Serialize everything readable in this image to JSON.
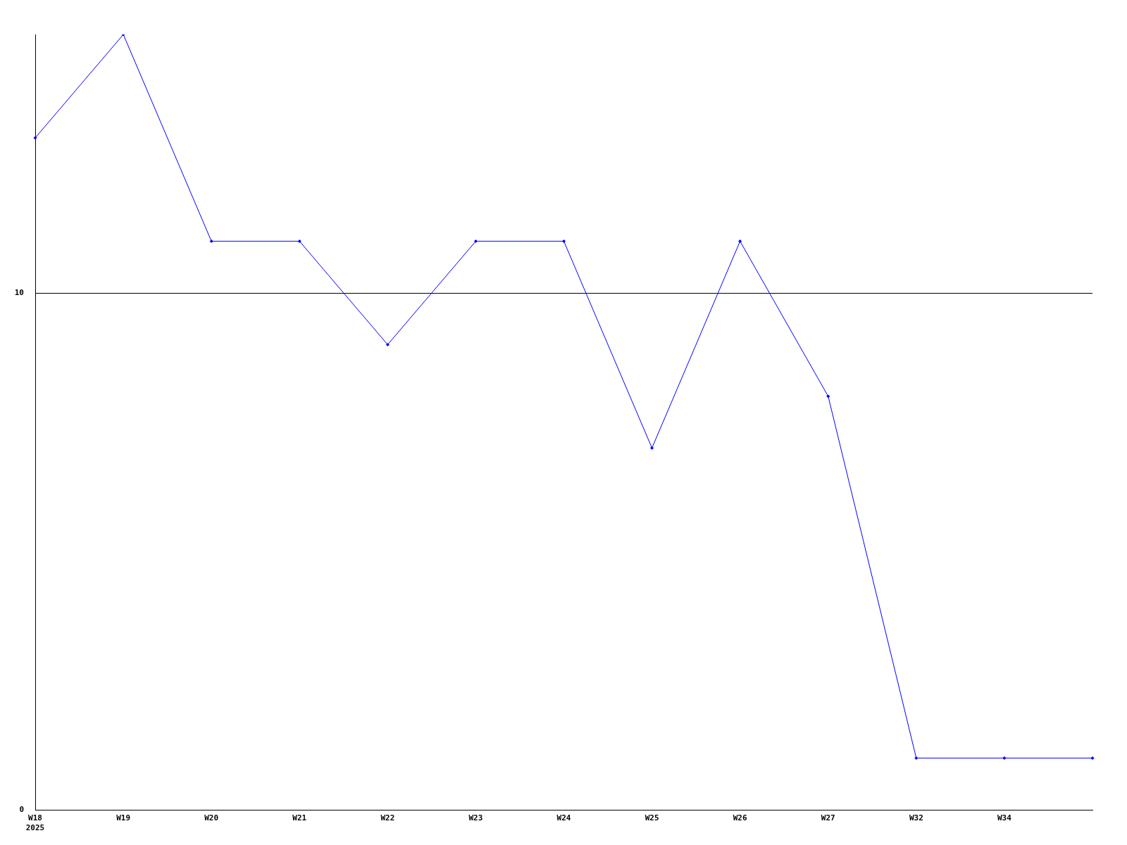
{
  "chart_data": {
    "type": "line",
    "categories": [
      "W18\n2025",
      "W19",
      "W20",
      "W21",
      "W22",
      "W23",
      "W24",
      "W25",
      "W26",
      "W27",
      "W32",
      "W34",
      null
    ],
    "series": [
      {
        "color": "#0000ff",
        "values": [
          13,
          15,
          11,
          11,
          9,
          11,
          11,
          7,
          11,
          8,
          1,
          1,
          1
        ]
      }
    ],
    "ylim": [
      0,
      15
    ],
    "yticks": [
      0,
      10
    ],
    "grid": "y",
    "legend": false,
    "marker": "diamond",
    "line_style": "solid"
  }
}
